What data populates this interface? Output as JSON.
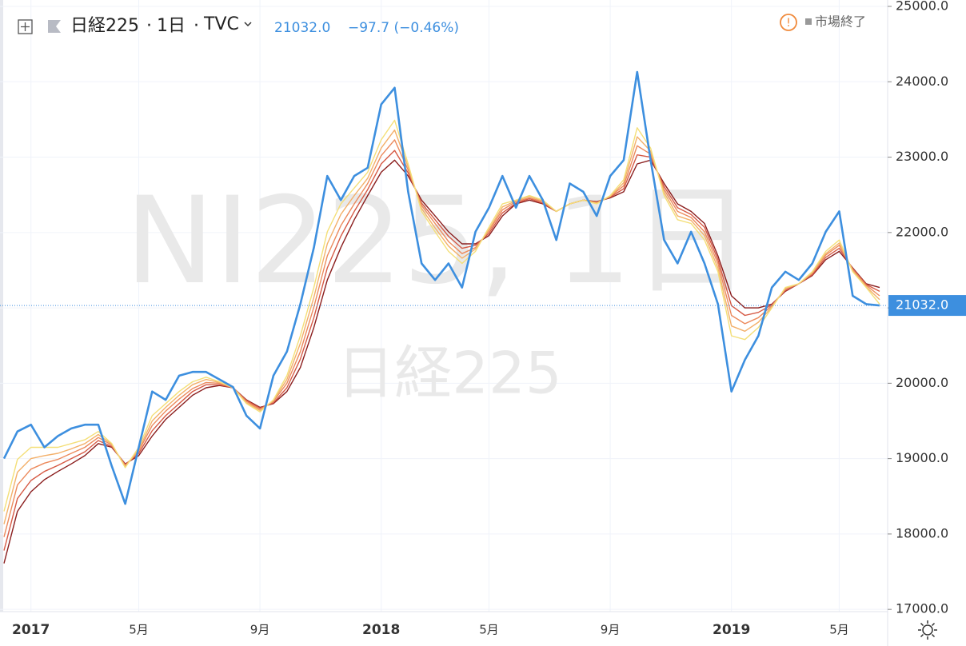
{
  "chart_data": {
    "type": "line",
    "symbol": "日経225",
    "interval": "1日",
    "source": "TVC",
    "last": "21032.0",
    "change": "−97.7 (−0.46%)",
    "status": "市場終了",
    "watermark": "NI225, 1日",
    "watermark_sub": "日経225",
    "last_price": {
      "value": 21032,
      "label": "21032.0"
    },
    "ylim": [
      16970,
      25085
    ],
    "yticks": [
      {
        "value": 17000,
        "label": "17000.0"
      },
      {
        "value": 18000,
        "label": "18000.0"
      },
      {
        "value": 19000,
        "label": "19000.0"
      },
      {
        "value": 20000,
        "label": "20000.0"
      },
      {
        "value": 21000,
        "label": "21000.0"
      },
      {
        "value": 22000,
        "label": "22000.0"
      },
      {
        "value": 23000,
        "label": "23000.0"
      },
      {
        "value": 24000,
        "label": "24000.0"
      },
      {
        "value": 25000,
        "label": "25000.0"
      }
    ],
    "grid": true,
    "categories": [
      null,
      null,
      "2017",
      null,
      null,
      null,
      null,
      null,
      null,
      null,
      "5月",
      null,
      null,
      null,
      null,
      null,
      null,
      null,
      null,
      "9月",
      null,
      null,
      null,
      null,
      null,
      null,
      null,
      null,
      "2018",
      null,
      null,
      null,
      null,
      null,
      null,
      null,
      "5月",
      null,
      null,
      null,
      null,
      null,
      null,
      null,
      null,
      "9月",
      null,
      null,
      null,
      null,
      null,
      null,
      null,
      null,
      "2019",
      null,
      null,
      null,
      null,
      null,
      null,
      null,
      "5月",
      null,
      null,
      null
    ],
    "series": [
      {
        "color": "#8b1e1e",
        "values": [
          17610,
          18300,
          18560,
          18720,
          18830,
          18930,
          19040,
          19200,
          19150,
          18930,
          19040,
          19300,
          19520,
          19680,
          19840,
          19940,
          19970,
          19940,
          19780,
          19680,
          19730,
          19890,
          20210,
          20740,
          21370,
          21800,
          22170,
          22490,
          22800,
          22960,
          22750,
          22430,
          22220,
          22010,
          21850,
          21850,
          21960,
          22220,
          22380,
          22430,
          22380,
          22280,
          22380,
          22430,
          22410,
          22460,
          22540,
          22910,
          22960,
          22650,
          22380,
          22280,
          22120,
          21690,
          21160,
          21000,
          21000,
          21050,
          21220,
          21320,
          21430,
          21640,
          21750,
          21530,
          21320,
          21270
        ]
      },
      {
        "color": "#d65a45",
        "values": [
          17780,
          18470,
          18710,
          18830,
          18910,
          19000,
          19090,
          19240,
          19160,
          18920,
          19070,
          19370,
          19570,
          19730,
          19890,
          19980,
          19980,
          19940,
          19770,
          19670,
          19740,
          19940,
          20320,
          20870,
          21530,
          21950,
          22280,
          22570,
          22910,
          23090,
          22790,
          22390,
          22170,
          21950,
          21790,
          21830,
          21990,
          22260,
          22390,
          22450,
          22390,
          22280,
          22380,
          22430,
          22400,
          22470,
          22580,
          23030,
          23000,
          22610,
          22330,
          22240,
          22070,
          21640,
          21030,
          20900,
          20940,
          21040,
          21230,
          21320,
          21440,
          21670,
          21790,
          21520,
          21310,
          21220
        ]
      },
      {
        "color": "#ec8a5c",
        "values": [
          17960,
          18650,
          18860,
          18940,
          18990,
          19070,
          19150,
          19280,
          19180,
          18910,
          19100,
          19440,
          19630,
          19790,
          19930,
          20010,
          20000,
          19940,
          19760,
          19650,
          19760,
          20000,
          20420,
          21010,
          21690,
          22090,
          22380,
          22650,
          23020,
          23230,
          22830,
          22360,
          22120,
          21880,
          21720,
          21800,
          22020,
          22300,
          22410,
          22460,
          22410,
          22280,
          22380,
          22430,
          22400,
          22480,
          22620,
          23150,
          23040,
          22570,
          22280,
          22200,
          22010,
          21590,
          20900,
          20790,
          20870,
          21030,
          21250,
          21320,
          21460,
          21700,
          21830,
          21510,
          21300,
          21160
        ]
      },
      {
        "color": "#f3b06a",
        "values": [
          18130,
          18820,
          19000,
          19040,
          19070,
          19130,
          19200,
          19320,
          19190,
          18890,
          19120,
          19500,
          19680,
          19840,
          19980,
          20050,
          20010,
          19940,
          19740,
          19640,
          19770,
          20050,
          20530,
          21140,
          21850,
          22240,
          22490,
          22720,
          23120,
          23360,
          22870,
          22320,
          22060,
          21820,
          21660,
          21780,
          22040,
          22340,
          22420,
          22480,
          22420,
          22280,
          22380,
          22430,
          22390,
          22480,
          22660,
          23270,
          23080,
          22530,
          22220,
          22160,
          21960,
          21530,
          20760,
          20690,
          20810,
          21010,
          21260,
          21320,
          21470,
          21720,
          21860,
          21490,
          21280,
          21110
        ]
      },
      {
        "color": "#f4df78",
        "values": [
          18300,
          18990,
          19150,
          19150,
          19150,
          19200,
          19250,
          19360,
          19200,
          18880,
          19150,
          19570,
          19730,
          19890,
          20020,
          20080,
          20020,
          19940,
          19730,
          19620,
          19780,
          20100,
          20630,
          21270,
          22010,
          22380,
          22590,
          22800,
          23230,
          23490,
          22910,
          22280,
          22010,
          21750,
          21590,
          21750,
          22070,
          22380,
          22430,
          22490,
          22430,
          22280,
          22380,
          22430,
          22380,
          22490,
          22700,
          23390,
          23120,
          22490,
          22170,
          22120,
          21900,
          21480,
          20630,
          20580,
          20740,
          21000,
          21270,
          21320,
          21480,
          21750,
          21900,
          21480,
          21270,
          21050
        ]
      },
      {
        "color": "#3d8fdf",
        "values": [
          19000,
          19360,
          19450,
          19150,
          19300,
          19400,
          19450,
          19450,
          18900,
          18400,
          19150,
          19890,
          19780,
          20100,
          20150,
          20150,
          20050,
          19950,
          19570,
          19400,
          20100,
          20420,
          21050,
          21800,
          22750,
          22430,
          22750,
          22860,
          23700,
          23920,
          22540,
          21590,
          21370,
          21590,
          21270,
          22010,
          22330,
          22750,
          22330,
          22750,
          22430,
          21900,
          22650,
          22540,
          22220,
          22750,
          22960,
          24130,
          22960,
          21900,
          21590,
          22010,
          21590,
          21050,
          19890,
          20310,
          20630,
          21270,
          21480,
          21370,
          21590,
          22010,
          22280,
          21160,
          21050,
          21032
        ]
      }
    ]
  }
}
